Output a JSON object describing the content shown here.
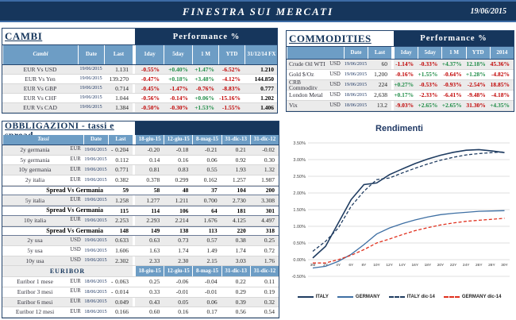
{
  "header": {
    "title": "FINESTRA SUI MERCATI",
    "date": "19/06/2015"
  },
  "cambi": {
    "title": "CAMBI",
    "performance_label": "Performance %",
    "columns": [
      "Cambi",
      "Date",
      "Last",
      "1day",
      "5day",
      "1 M",
      "YTD",
      "31/12/14 FX"
    ],
    "rows": [
      {
        "name": "EUR Vs USD",
        "date": "19/06/2015",
        "last": "1.131",
        "perf": [
          "-0.55%",
          "+0.40%",
          "+1.47%",
          "-6.52%"
        ],
        "fx": "1.210"
      },
      {
        "name": "EUR Vs Yen",
        "date": "19/06/2015",
        "last": "139.270",
        "perf": [
          "-0.47%",
          "+0.18%",
          "+3.48%",
          "-4.12%"
        ],
        "fx": "144.850"
      },
      {
        "name": "EUR Vs GBP",
        "date": "19/06/2015",
        "last": "0.714",
        "perf": [
          "-0.45%",
          "-1.47%",
          "-0.76%",
          "-8.83%"
        ],
        "fx": "0.777"
      },
      {
        "name": "EUR Vs CHF",
        "date": "19/06/2015",
        "last": "1.044",
        "perf": [
          "-0.56%",
          "-0.14%",
          "+0.06%",
          "-15.16%"
        ],
        "fx": "1.202"
      },
      {
        "name": "EUR Vs CAD",
        "date": "19/06/2015",
        "last": "1.384",
        "perf": [
          "-0.50%",
          "-0.30%",
          "+1.53%",
          "-1.55%"
        ],
        "fx": "1.406"
      }
    ]
  },
  "commodities": {
    "title": "COMMODITIES",
    "performance_label": "Performance %",
    "columns": [
      "Date",
      "Last",
      "1day",
      "5day",
      "1 M",
      "YTD",
      "2014"
    ],
    "rows": [
      {
        "name": "Crude Oil WTI",
        "currency": "USD",
        "date": "19/06/2015",
        "last": "60",
        "perf": [
          "-1.14%",
          "-0.33%",
          "+4.37%",
          "+12.18%",
          "-45.36%"
        ]
      },
      {
        "name": "Gold $/Oz",
        "currency": "USD",
        "date": "19/06/2015",
        "last": "1,200",
        "perf": [
          "-0.16%",
          "+1.55%",
          "-0.64%",
          "+1.28%",
          "-4.82%"
        ]
      },
      {
        "name": "CRB Commodity",
        "currency": "USD",
        "date": "19/06/2015",
        "last": "224",
        "perf": [
          "+0.27%",
          "-0.53%",
          "-0.93%",
          "-2.54%",
          "-18.85%"
        ]
      },
      {
        "name": "London Metal",
        "currency": "USD",
        "date": "18/06/2015",
        "last": "2,638",
        "perf": [
          "+0.17%",
          "-2.33%",
          "-6.41%",
          "-9.48%",
          "-4.18%"
        ]
      },
      {
        "name": "Vix",
        "currency": "USD",
        "date": "18/06/2015",
        "last": "13.2",
        "perf": [
          "-9.03%",
          "+2.65%",
          "+2.65%",
          "-31.30%",
          "+4.35%"
        ]
      }
    ]
  },
  "obbligazioni": {
    "title": "OBBLIGAZIONI - tassi e spread",
    "columns": [
      "Tassi",
      "Date",
      "Last",
      "18-giu-15",
      "12-giu-15",
      "8-mag-15",
      "31-dic-13",
      "31-dic-12"
    ],
    "rows": [
      {
        "type": "data",
        "shaded": true,
        "name": "2y germania",
        "currency": "EUR",
        "date": "19/06/2015",
        "last": "- 0.204",
        "values": [
          "-0.20",
          "-0.18",
          "-0.21",
          "0.21",
          "-0.02"
        ]
      },
      {
        "type": "data",
        "shaded": false,
        "name": "5y germania",
        "currency": "EUR",
        "date": "19/06/2015",
        "last": "0.112",
        "values": [
          "0.14",
          "0.16",
          "0.06",
          "0.92",
          "0.30"
        ]
      },
      {
        "type": "data",
        "shaded": true,
        "name": "10y germania",
        "currency": "EUR",
        "date": "19/06/2015",
        "last": "0.771",
        "values": [
          "0.81",
          "0.83",
          "0.55",
          "1.93",
          "1.32"
        ]
      },
      {
        "type": "data",
        "shaded": false,
        "name": "2y italia",
        "currency": "EUR",
        "date": "19/06/2015",
        "last": "0.382",
        "values": [
          "0.378",
          "0.299",
          "0.162",
          "1.257",
          "1.987"
        ]
      },
      {
        "type": "spread",
        "name": "Spread Vs Germania",
        "last": "59",
        "values": [
          "58",
          "48",
          "37",
          "104",
          "200"
        ]
      },
      {
        "type": "data",
        "shaded": true,
        "name": "5y italia",
        "currency": "EUR",
        "date": "19/06/2015",
        "last": "1.258",
        "values": [
          "1.277",
          "1.211",
          "0.700",
          "2.730",
          "3.308"
        ]
      },
      {
        "type": "spread",
        "name": "Spread Vs Germania",
        "last": "115",
        "values": [
          "114",
          "106",
          "64",
          "181",
          "301"
        ]
      },
      {
        "type": "data",
        "shaded": true,
        "name": "10y italia",
        "currency": "EUR",
        "date": "19/06/2015",
        "last": "2.253",
        "values": [
          "2.293",
          "2.214",
          "1.676",
          "4.125",
          "4.497"
        ]
      },
      {
        "type": "spread",
        "name": "Spread Vs Germania",
        "last": "148",
        "values": [
          "149",
          "138",
          "113",
          "220",
          "318"
        ]
      },
      {
        "type": "data",
        "shaded": true,
        "name": "2y usa",
        "currency": "USD",
        "date": "19/06/2015",
        "last": "0.633",
        "values": [
          "0.63",
          "0.73",
          "0.57",
          "0.38",
          "0.25"
        ]
      },
      {
        "type": "data",
        "shaded": false,
        "name": "5y usa",
        "currency": "USD",
        "date": "19/06/2015",
        "last": "1.606",
        "values": [
          "1.63",
          "1.74",
          "1.49",
          "1.74",
          "0.72"
        ]
      },
      {
        "type": "data",
        "shaded": true,
        "name": "10y usa",
        "currency": "USD",
        "date": "19/06/2015",
        "last": "2.302",
        "values": [
          "2.33",
          "2.30",
          "2.15",
          "3.03",
          "1.76"
        ]
      }
    ],
    "euribor": {
      "label": "EURIBOR",
      "columns": [
        "18-giu-15",
        "12-giu-15",
        "8-mag-15",
        "31-dic-13",
        "31-dic-12"
      ],
      "rows": [
        {
          "shaded": false,
          "name": "Euribor 1 mese",
          "currency": "EUR",
          "date": "18/06/2015",
          "last": "- 0.063",
          "values": [
            "0.25",
            "-0.06",
            "-0.04",
            "0.22",
            "0.11"
          ]
        },
        {
          "shaded": false,
          "name": "Euribor 3 mesi",
          "currency": "EUR",
          "date": "18/06/2015",
          "last": "- 0.014",
          "values": [
            "0.33",
            "-0.01",
            "-0.01",
            "0.29",
            "0.19"
          ]
        },
        {
          "shaded": true,
          "name": "Euribor 6 mesi",
          "currency": "EUR",
          "date": "18/06/2015",
          "last": "0.049",
          "values": [
            "0.43",
            "0.05",
            "0.06",
            "0.39",
            "0.32"
          ]
        },
        {
          "shaded": false,
          "name": "Euribor 12 mesi",
          "currency": "EUR",
          "date": "18/06/2015",
          "last": "0.166",
          "values": [
            "0.60",
            "0.16",
            "0.17",
            "0.56",
            "0.54"
          ]
        }
      ]
    }
  },
  "chart_data": {
    "type": "line",
    "title": "Rendimenti",
    "x": [
      "3M",
      "2Y",
      "4Y",
      "6Y",
      "8Y",
      "10Y",
      "12Y",
      "14Y",
      "16Y",
      "18Y",
      "20Y",
      "22Y",
      "24Y",
      "26Y",
      "28Y",
      "30Y"
    ],
    "ylim": [
      -0.5,
      3.5
    ],
    "ytick_step": 0.5,
    "ytick_labels": [
      "3.50%",
      "3.00%",
      "2.50%",
      "2.00%",
      "1.50%",
      "1.00%",
      "0.50%",
      "0.00%",
      "-0.50%"
    ],
    "grid": true,
    "legend_position": "bottom",
    "series": [
      {
        "name": "ITALY",
        "style": "solid",
        "color": "#1F3C61",
        "values": [
          0.05,
          0.4,
          1.1,
          1.8,
          2.25,
          2.3,
          2.55,
          2.72,
          2.88,
          3.02,
          3.13,
          3.22,
          3.28,
          3.3,
          3.26,
          3.21
        ]
      },
      {
        "name": "GERMANY",
        "style": "solid",
        "color": "#3E6FA3",
        "values": [
          -0.25,
          -0.2,
          -0.05,
          0.16,
          0.45,
          0.77,
          0.95,
          1.08,
          1.19,
          1.28,
          1.35,
          1.39,
          1.42,
          1.45,
          1.46,
          1.47
        ]
      },
      {
        "name": "ITALY dic-14",
        "style": "dashed",
        "color": "#1F3C61",
        "values": [
          0.25,
          0.55,
          0.95,
          1.6,
          2.05,
          2.4,
          2.45,
          2.6,
          2.74,
          2.87,
          2.98,
          3.07,
          3.14,
          3.18,
          3.21,
          3.23
        ]
      },
      {
        "name": "GERMANY dic-14",
        "style": "dashed",
        "color": "#E0301E",
        "values": [
          -0.1,
          -0.1,
          0.0,
          0.13,
          0.3,
          0.5,
          0.62,
          0.75,
          0.87,
          0.96,
          1.04,
          1.1,
          1.15,
          1.18,
          1.21,
          1.24
        ]
      }
    ]
  }
}
